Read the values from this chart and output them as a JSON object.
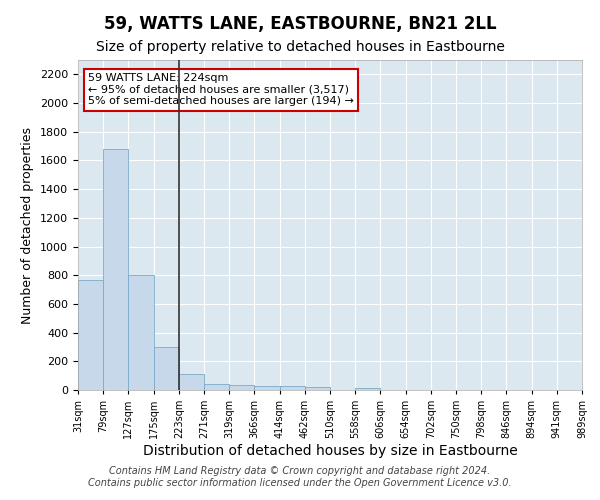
{
  "title": "59, WATTS LANE, EASTBOURNE, BN21 2LL",
  "subtitle": "Size of property relative to detached houses in Eastbourne",
  "xlabel": "Distribution of detached houses by size in Eastbourne",
  "ylabel": "Number of detached properties",
  "footer_line1": "Contains HM Land Registry data © Crown copyright and database right 2024.",
  "footer_line2": "Contains public sector information licensed under the Open Government Licence v3.0.",
  "bin_labels": [
    "31sqm",
    "79sqm",
    "127sqm",
    "175sqm",
    "223sqm",
    "271sqm",
    "319sqm",
    "366sqm",
    "414sqm",
    "462sqm",
    "510sqm",
    "558sqm",
    "606sqm",
    "654sqm",
    "702sqm",
    "750sqm",
    "798sqm",
    "846sqm",
    "894sqm",
    "941sqm",
    "989sqm"
  ],
  "bar_values": [
    770,
    1680,
    800,
    300,
    110,
    45,
    35,
    30,
    25,
    20,
    0,
    15,
    0,
    0,
    0,
    0,
    0,
    0,
    0,
    0
  ],
  "bar_color": "#c8d8eb",
  "bar_edge_color": "#7aaac8",
  "vline_x_index": 4,
  "vline_color": "#333333",
  "annotation_text_line1": "59 WATTS LANE: 224sqm",
  "annotation_text_line2": "← 95% of detached houses are smaller (3,517)",
  "annotation_text_line3": "5% of semi-detached houses are larger (194) →",
  "annotation_box_edgecolor": "#cc0000",
  "ylim": [
    0,
    2300
  ],
  "yticks": [
    0,
    200,
    400,
    600,
    800,
    1000,
    1200,
    1400,
    1600,
    1800,
    2000,
    2200
  ],
  "ax_background_color": "#dce8f0",
  "grid_color": "#ffffff",
  "fig_background_color": "#ffffff",
  "title_fontsize": 12,
  "subtitle_fontsize": 10,
  "ylabel_fontsize": 9,
  "xlabel_fontsize": 10,
  "tick_fontsize": 8,
  "footer_fontsize": 7
}
